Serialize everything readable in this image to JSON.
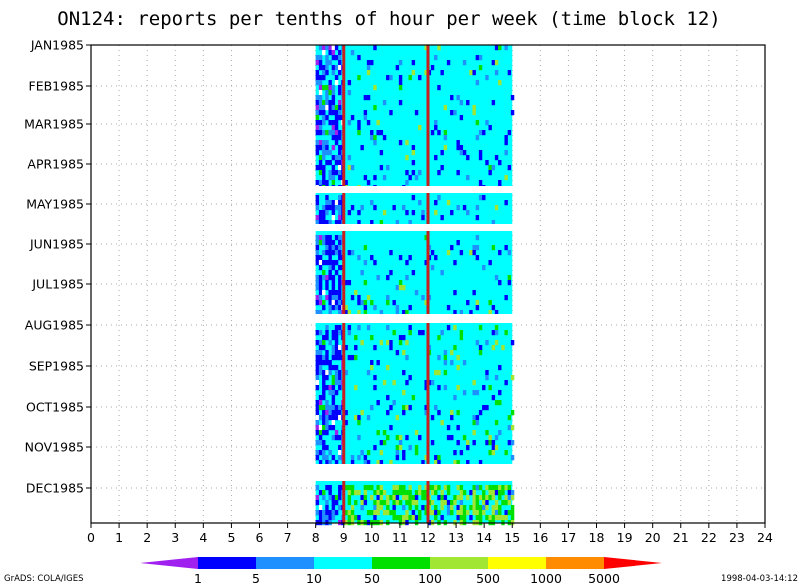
{
  "title": "ON124: reports per tenths of hour per week (time block 12)",
  "footer_left": "GrADS: COLA/IGES",
  "footer_right": "1998-04-03-14:12",
  "chart_data": {
    "type": "heatmap",
    "title": "ON124: reports per tenths of hour per week (time block 12)",
    "x_range": [
      0,
      24
    ],
    "x_ticks": [
      "0",
      "1",
      "2",
      "3",
      "4",
      "5",
      "6",
      "7",
      "8",
      "9",
      "10",
      "11",
      "12",
      "13",
      "14",
      "15",
      "16",
      "17",
      "18",
      "19",
      "20",
      "21",
      "22",
      "23",
      "24"
    ],
    "y_ticks": [
      "JAN1985",
      "FEB1985",
      "MAR1985",
      "APR1985",
      "MAY1985",
      "JUN1985",
      "JUL1985",
      "AUG1985",
      "SEP1985",
      "OCT1985",
      "NOV1985",
      "DEC1985"
    ],
    "grid": true,
    "data_x_range": [
      8,
      15
    ],
    "gaps": [
      "late APR1985 to early MAY1985",
      "late MAY1985",
      "late JUL1985",
      "late NOV1985 to early DEC1985"
    ],
    "highlight_lines": [
      {
        "x": 9,
        "color": "#c81e1e"
      },
      {
        "x": 12,
        "color": "#c81e1e"
      }
    ],
    "colorbar": {
      "levels": [
        "1",
        "5",
        "10",
        "50",
        "100",
        "500",
        "1000",
        "5000"
      ],
      "colors": [
        "#a020f0",
        "#0000ff",
        "#1e90ff",
        "#00ffff",
        "#00e000",
        "#a0e632",
        "#ffff00",
        "#ff8c00",
        "#ff0000"
      ]
    }
  }
}
